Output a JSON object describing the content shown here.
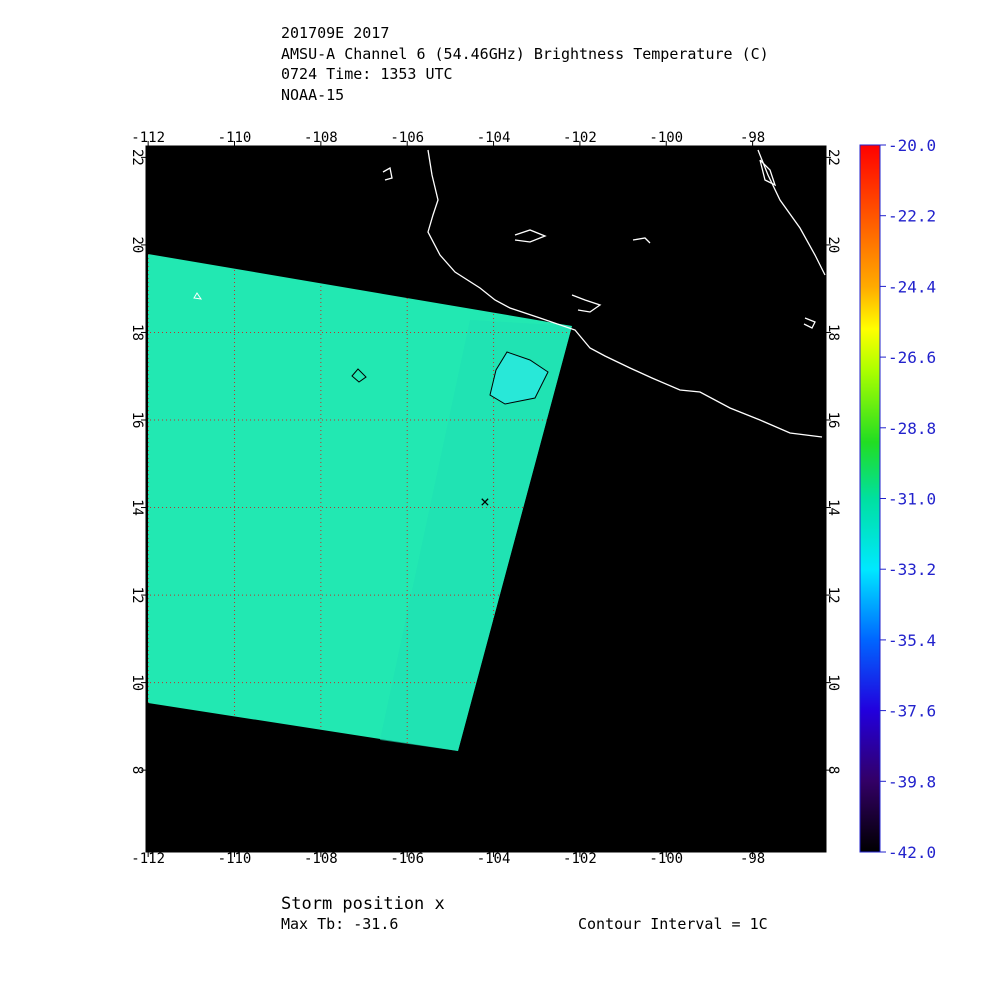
{
  "header": {
    "lines": [
      "201709E 2017",
      "AMSU-A Channel 6 (54.46GHz) Brightness Temperature (C)",
      "0724 Time: 1353 UTC",
      "NOAA-15"
    ]
  },
  "map": {
    "xlim": [
      -112.05,
      -96.3
    ],
    "ylim": [
      6.13,
      22.26
    ],
    "xticks": [
      -112,
      -110,
      -108,
      -106,
      -104,
      -102,
      -100,
      -98
    ],
    "yticks": [
      8,
      10,
      12,
      14,
      16,
      18,
      20,
      22
    ],
    "grid": true
  },
  "colorbar": {
    "lim": [
      -42,
      -20
    ],
    "ticks": [
      {
        "value": -20,
        "label": "-20.0"
      },
      {
        "value": -22.2,
        "label": "-22.2"
      },
      {
        "value": -24.4,
        "label": "-24.4"
      },
      {
        "value": -26.6,
        "label": "-26.6"
      },
      {
        "value": -28.8,
        "label": "-28.8"
      },
      {
        "value": -31,
        "label": "-31.0"
      },
      {
        "value": -33.2,
        "label": "-33.2"
      },
      {
        "value": -35.4,
        "label": "-35.4"
      },
      {
        "value": -37.6,
        "label": "-37.6"
      },
      {
        "value": -39.8,
        "label": "-39.8"
      },
      {
        "value": -42,
        "label": "-42.0"
      }
    ]
  },
  "footer": {
    "storm": "Storm position x",
    "max_tb": "Max Tb: -31.6",
    "contour": "Contour Interval = 1C"
  }
}
